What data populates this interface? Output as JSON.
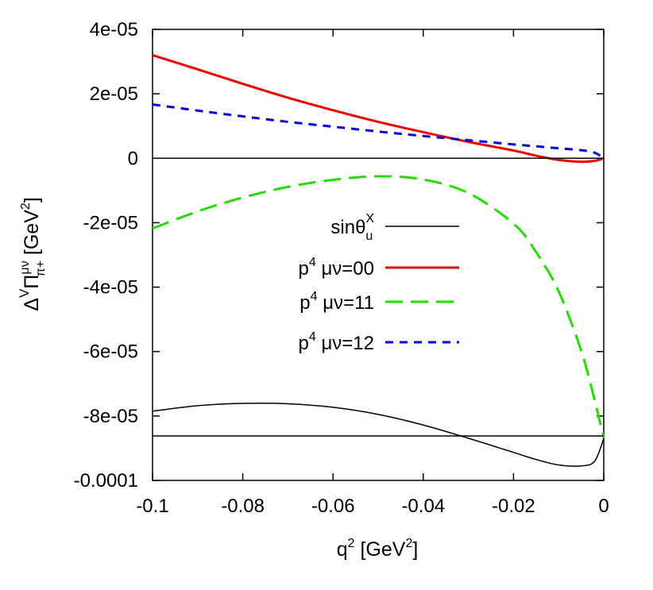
{
  "chart_data": {
    "type": "line",
    "xlabel": "q² [GeV²]",
    "ylabel": "Δ^V Π^{μν}_{π+} [GeV²]",
    "xlim": [
      -0.1,
      0
    ],
    "ylim": [
      -0.0001,
      4e-05
    ],
    "x_ticks": [
      "-0.1",
      "-0.08",
      "-0.06",
      "-0.04",
      "-0.02",
      "0"
    ],
    "y_ticks": [
      "4e-05",
      "2e-05",
      "0",
      "-2e-05",
      "-4e-05",
      "-6e-05",
      "-8e-05",
      "-0.0001"
    ],
    "x_tick_values": [
      -0.1,
      -0.08,
      -0.06,
      -0.04,
      -0.02,
      0
    ],
    "y_tick_values": [
      4e-05,
      2e-05,
      0,
      -2e-05,
      -4e-05,
      -6e-05,
      -8e-05,
      -0.0001
    ],
    "legend_position": "center-right",
    "series": [
      {
        "name": "sinθu^X",
        "style": "solid",
        "color": "#000000",
        "x": [
          -0.1,
          -0.09,
          -0.08,
          -0.07,
          -0.06,
          -0.05,
          -0.04,
          -0.03,
          -0.02,
          -0.015,
          -0.01,
          -0.005,
          -0.002,
          0
        ],
        "y": [
          -7.85e-05,
          -7.68e-05,
          -7.61e-05,
          -7.62e-05,
          -7.73e-05,
          -7.95e-05,
          -8.28e-05,
          -8.69e-05,
          -9.13e-05,
          -9.35e-05,
          -9.52e-05,
          -9.55e-05,
          -9.4e-05,
          -8.7e-05
        ]
      },
      {
        "name": "p⁴ μν=00",
        "style": "solid",
        "color": "#ee0000",
        "x": [
          -0.1,
          -0.09,
          -0.08,
          -0.07,
          -0.06,
          -0.05,
          -0.04,
          -0.03,
          -0.02,
          -0.015,
          -0.01,
          -0.005,
          -0.002,
          0
        ],
        "y": [
          3.2e-05,
          2.76e-05,
          2.31e-05,
          1.88e-05,
          1.49e-05,
          1.13e-05,
          8.1e-06,
          5.1e-06,
          2.4e-06,
          8e-07,
          -5e-07,
          -1.1e-06,
          -8e-07,
          0
        ]
      },
      {
        "name": "p⁴ μν=11",
        "style": "long-dash",
        "color": "#22dd00",
        "x": [
          -0.1,
          -0.09,
          -0.08,
          -0.07,
          -0.06,
          -0.05,
          -0.04,
          -0.03,
          -0.02,
          -0.015,
          -0.01,
          -0.005,
          -0.002,
          0
        ],
        "y": [
          -2.18e-05,
          -1.65e-05,
          -1.22e-05,
          -8.9e-06,
          -6.7e-06,
          -5.6e-06,
          -6.6e-06,
          -1.08e-05,
          -2.03e-05,
          -2.91e-05,
          -4.13e-05,
          -5.97e-05,
          -7.52e-05,
          -8.68e-05
        ]
      },
      {
        "name": "p⁴ μν=12",
        "style": "short-dash",
        "color": "#0000dd",
        "x": [
          -0.1,
          -0.09,
          -0.08,
          -0.07,
          -0.06,
          -0.05,
          -0.04,
          -0.03,
          -0.02,
          -0.015,
          -0.01,
          -0.005,
          -0.002,
          0
        ],
        "y": [
          1.67e-05,
          1.48e-05,
          1.3e-05,
          1.13e-05,
          9.8e-06,
          8.3e-06,
          6.9e-06,
          5.6e-06,
          4.3e-06,
          3.7e-06,
          3.1e-06,
          2.5e-06,
          1.7e-06,
          0
        ]
      },
      {
        "name": "",
        "style": "solid",
        "color": "#000000",
        "x": [
          -0.1,
          0
        ],
        "y": [
          0,
          0
        ]
      },
      {
        "name": "",
        "style": "solid",
        "color": "#000000",
        "x": [
          -0.1,
          0
        ],
        "y": [
          -8.62e-05,
          -8.62e-05
        ]
      }
    ]
  }
}
